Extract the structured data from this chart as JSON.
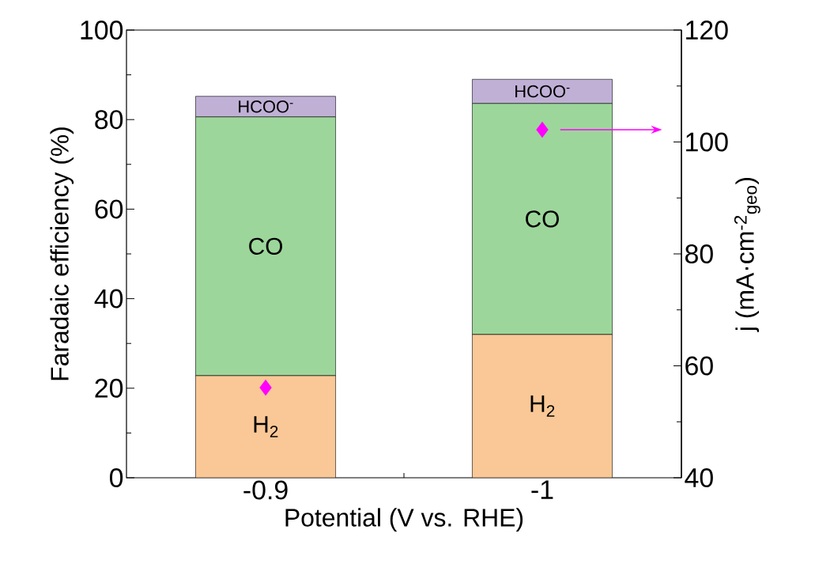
{
  "chart_data": {
    "type": "bar",
    "stacked": true,
    "xlabel": "Potential (V vs. RHE)",
    "ylabel": "Faradaic efficiency (%)",
    "y2label": "j (mA·cm$^{-2}$$_{geo}$)",
    "categories": [
      "-0.9",
      "-1"
    ],
    "series": [
      {
        "name": "H$_{2}$",
        "color": "#f9c896",
        "values": [
          22.8,
          32.0
        ]
      },
      {
        "name": "CO",
        "color": "#9dd69b",
        "values": [
          57.8,
          51.6
        ]
      },
      {
        "name": "HCOO$^{-}$",
        "color": "#c0b0d6",
        "values": [
          4.6,
          5.4
        ]
      },
      {
        "type": "scatter",
        "axis": "y2",
        "color": "#ff00ff",
        "values": [
          56.1,
          102.2
        ]
      }
    ],
    "marker": "diamond",
    "ylim": [
      0,
      100
    ],
    "yticks": [
      0,
      20,
      40,
      60,
      80,
      100
    ],
    "y2lim": [
      40,
      120
    ],
    "y2ticks": [
      40,
      60,
      80,
      100,
      120
    ],
    "grid": false
  }
}
